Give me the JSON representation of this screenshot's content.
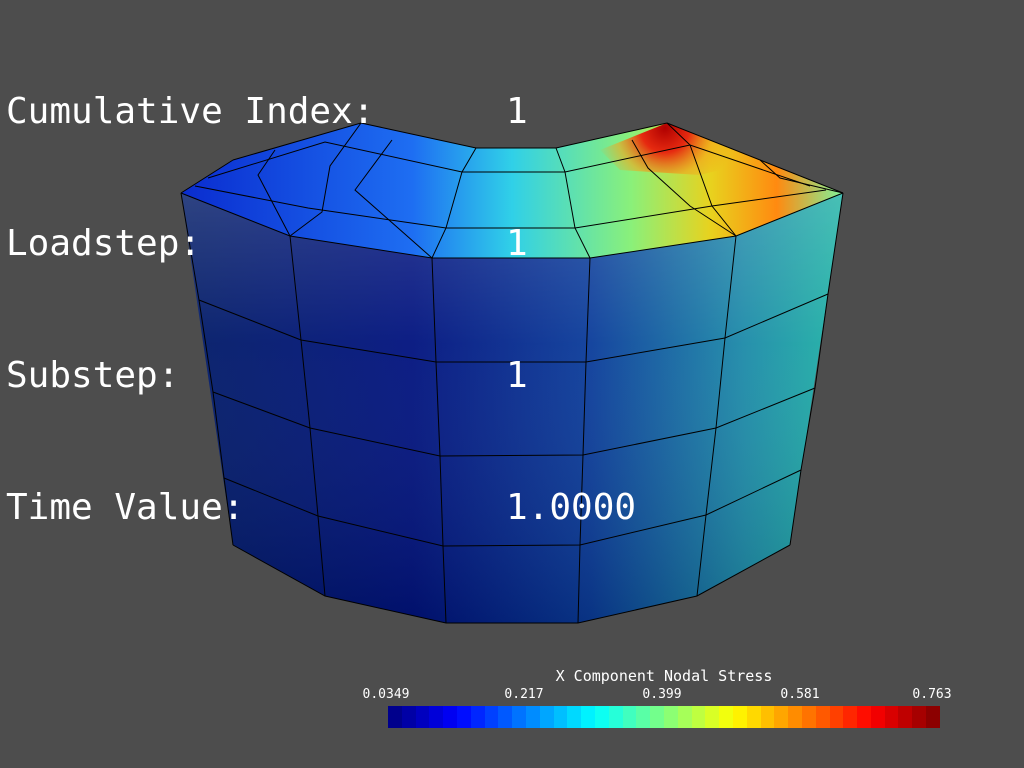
{
  "info": {
    "rows": [
      {
        "label": "Cumulative Index:",
        "value": "1"
      },
      {
        "label": "Loadstep:",
        "value": "1"
      },
      {
        "label": "Substep:",
        "value": "1"
      },
      {
        "label": "Time Value:",
        "value": "1.0000"
      }
    ]
  },
  "colorbar": {
    "title": "X Component Nodal Stress",
    "ticks": [
      "0.0349",
      "0.217",
      "0.399",
      "0.581",
      "0.763"
    ],
    "colormap": "jet",
    "segments": 40
  },
  "colors": {
    "background": "#4d4d4d",
    "text": "#ffffff",
    "mesh_lines": "#000000"
  }
}
